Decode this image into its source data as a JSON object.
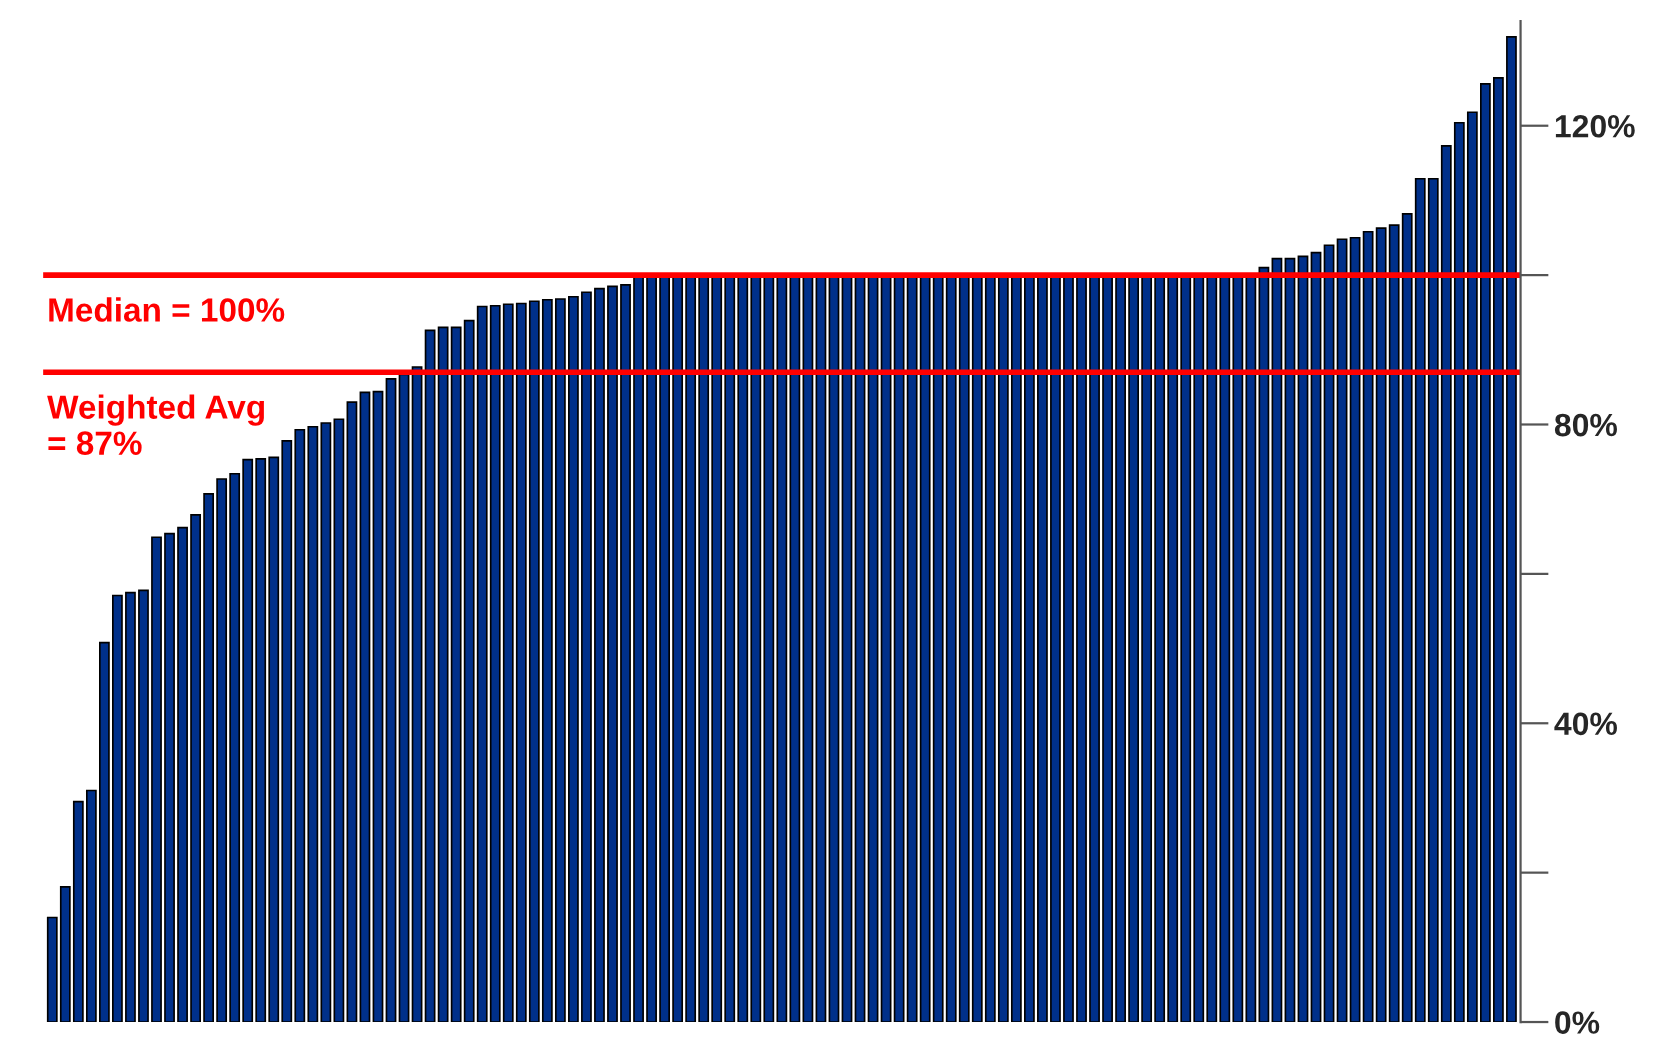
{
  "chart_data": {
    "type": "bar",
    "categories": [
      null,
      null,
      null,
      null,
      null,
      null,
      null,
      null,
      null,
      null,
      null,
      null,
      null,
      null,
      null,
      null,
      null,
      null,
      null,
      null,
      null,
      null,
      null,
      null,
      null,
      null,
      null,
      null,
      null,
      null,
      null,
      null,
      null,
      null,
      null,
      null,
      null,
      null,
      null,
      null,
      null,
      null,
      null,
      null,
      null,
      null,
      null,
      null,
      null,
      null,
      null,
      null,
      null,
      null,
      null,
      null,
      null,
      null,
      null,
      null,
      null,
      null,
      null,
      null,
      null,
      null,
      null,
      null,
      null,
      null,
      null,
      null,
      null,
      null,
      null,
      null,
      null,
      null,
      null,
      null,
      null,
      null,
      null,
      null,
      null,
      null,
      null,
      null,
      null,
      null,
      null,
      null,
      null,
      null,
      null,
      null,
      null,
      null,
      null,
      null,
      null,
      null,
      null,
      null,
      null,
      null,
      null,
      null,
      null,
      null,
      null,
      null,
      null
    ],
    "values": [
      14.0,
      18.1,
      29.5,
      31.0,
      50.8,
      57.1,
      57.5,
      57.8,
      64.9,
      65.4,
      66.2,
      67.9,
      70.7,
      72.7,
      73.4,
      75.3,
      75.4,
      75.6,
      77.8,
      79.3,
      79.7,
      80.2,
      80.7,
      83.0,
      84.3,
      84.4,
      86.1,
      86.7,
      87.7,
      92.6,
      93.0,
      93.0,
      93.9,
      95.8,
      95.9,
      96.1,
      96.2,
      96.5,
      96.7,
      96.8,
      97.1,
      97.7,
      98.2,
      98.5,
      98.7,
      100,
      100,
      100,
      100,
      100,
      100,
      100,
      100,
      100,
      100,
      100,
      100,
      100,
      100,
      100,
      100,
      100,
      100,
      100,
      100,
      100,
      100,
      100,
      100,
      100,
      100,
      100,
      100,
      100,
      100,
      100,
      100,
      100,
      100,
      100,
      100,
      100,
      100,
      100,
      100,
      100,
      100,
      100,
      100,
      100,
      100,
      100,
      100,
      101.0,
      102.2,
      102.2,
      102.5,
      103.0,
      104.0,
      104.8,
      105.0,
      105.8,
      106.3,
      106.7,
      108.2,
      112.9,
      112.9,
      117.3,
      120.4,
      121.8,
      125.6,
      126.4,
      131.9
    ],
    "color": "#00308a",
    "ylim": [
      0,
      134
    ],
    "yticks": [
      {
        "value": 0,
        "label": "0%"
      },
      {
        "value": 20,
        "label": null
      },
      {
        "value": 40,
        "label": "40%"
      },
      {
        "value": 60,
        "label": null
      },
      {
        "value": 80,
        "label": "80%"
      },
      {
        "value": 100,
        "label": null
      },
      {
        "value": 120,
        "label": "120%"
      }
    ],
    "ref_lines": [
      {
        "axis": "y",
        "value": 100,
        "label": "Median = 100%",
        "color": "#ff0000"
      },
      {
        "axis": "y",
        "value": 87,
        "label": "Weighted Avg\n= 87%",
        "color": "#ff0000"
      }
    ],
    "tick_labels": "y",
    "grid": false
  }
}
